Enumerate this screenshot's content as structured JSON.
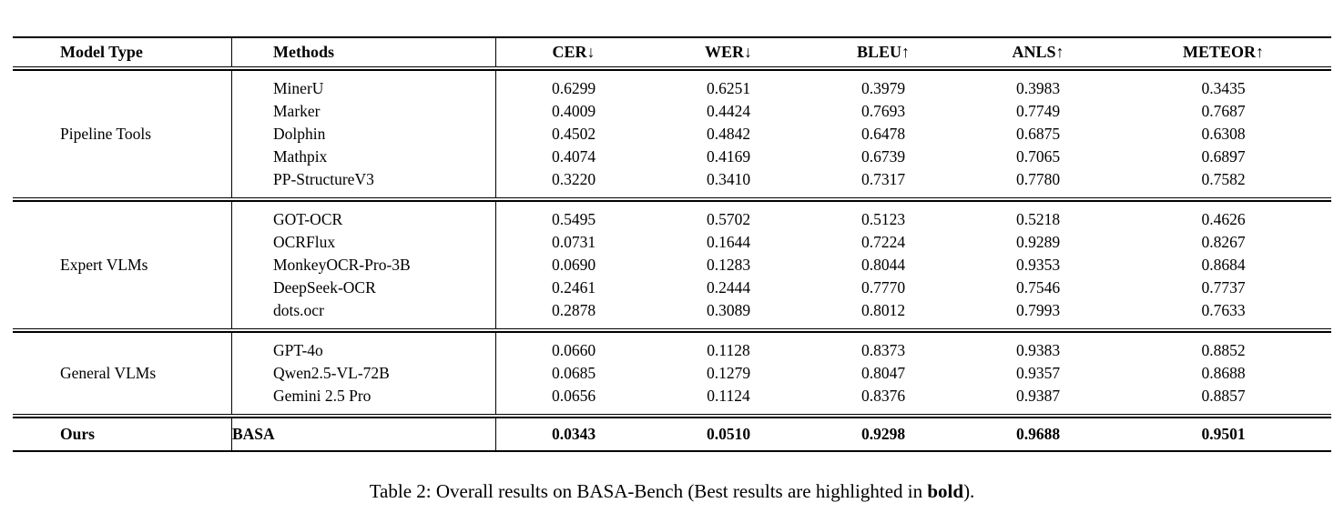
{
  "table": {
    "columns": [
      {
        "label": "Model Type"
      },
      {
        "label": "Methods"
      },
      {
        "label": "CER↓"
      },
      {
        "label": "WER↓"
      },
      {
        "label": "BLEU↑"
      },
      {
        "label": "ANLS↑"
      },
      {
        "label": "METEOR↑"
      }
    ],
    "groups": [
      {
        "model_type": "Pipeline Tools",
        "rows": [
          {
            "method": "MinerU",
            "values": [
              "0.6299",
              "0.6251",
              "0.3979",
              "0.3983",
              "0.3435"
            ]
          },
          {
            "method": "Marker",
            "values": [
              "0.4009",
              "0.4424",
              "0.7693",
              "0.7749",
              "0.7687"
            ]
          },
          {
            "method": "Dolphin",
            "values": [
              "0.4502",
              "0.4842",
              "0.6478",
              "0.6875",
              "0.6308"
            ]
          },
          {
            "method": "Mathpix",
            "values": [
              "0.4074",
              "0.4169",
              "0.6739",
              "0.7065",
              "0.6897"
            ]
          },
          {
            "method": "PP-StructureV3",
            "values": [
              "0.3220",
              "0.3410",
              "0.7317",
              "0.7780",
              "0.7582"
            ]
          }
        ]
      },
      {
        "model_type": "Expert VLMs",
        "rows": [
          {
            "method": "GOT-OCR",
            "values": [
              "0.5495",
              "0.5702",
              "0.5123",
              "0.5218",
              "0.4626"
            ]
          },
          {
            "method": "OCRFlux",
            "values": [
              "0.0731",
              "0.1644",
              "0.7224",
              "0.9289",
              "0.8267"
            ]
          },
          {
            "method": "MonkeyOCR-Pro-3B",
            "values": [
              "0.0690",
              "0.1283",
              "0.8044",
              "0.9353",
              "0.8684"
            ]
          },
          {
            "method": "DeepSeek-OCR",
            "values": [
              "0.2461",
              "0.2444",
              "0.7770",
              "0.7546",
              "0.7737"
            ]
          },
          {
            "method": "dots.ocr",
            "values": [
              "0.2878",
              "0.3089",
              "0.8012",
              "0.7993",
              "0.7633"
            ]
          }
        ]
      },
      {
        "model_type": "General VLMs",
        "rows": [
          {
            "method": "GPT-4o",
            "values": [
              "0.0660",
              "0.1128",
              "0.8373",
              "0.9383",
              "0.8852"
            ]
          },
          {
            "method": "Qwen2.5-VL-72B",
            "values": [
              "0.0685",
              "0.1279",
              "0.8047",
              "0.9357",
              "0.8688"
            ]
          },
          {
            "method": "Gemini 2.5 Pro",
            "values": [
              "0.0656",
              "0.1124",
              "0.8376",
              "0.9387",
              "0.8857"
            ]
          }
        ]
      },
      {
        "model_type": "Ours",
        "rows": [
          {
            "method": "BASA",
            "values": [
              "0.0343",
              "0.0510",
              "0.9298",
              "0.9688",
              "0.9501"
            ]
          }
        ]
      }
    ]
  },
  "caption": {
    "prefix": "Table 2: Overall results on BASA-Bench (Best results are highlighted in ",
    "bold_word": "bold",
    "suffix": ")."
  }
}
